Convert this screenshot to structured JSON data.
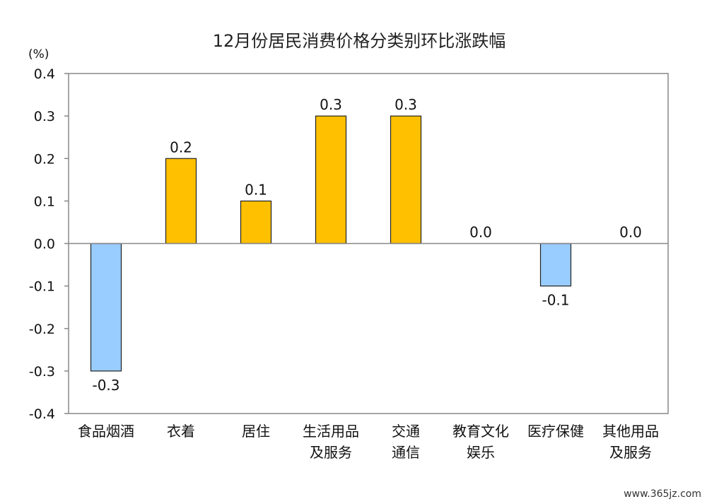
{
  "chart_data": {
    "type": "bar",
    "title": "12月份居民消费价格分类别环比涨跌幅",
    "unit_label": "(%)",
    "categories": [
      [
        "食品烟酒"
      ],
      [
        "衣着"
      ],
      [
        "居住"
      ],
      [
        "生活用品",
        "及服务"
      ],
      [
        "交通",
        "通信"
      ],
      [
        "教育文化",
        "娱乐"
      ],
      [
        "医疗保健"
      ],
      [
        "其他用品",
        "及服务"
      ]
    ],
    "values": [
      -0.3,
      0.2,
      0.1,
      0.3,
      0.3,
      0.0,
      -0.1,
      0.0
    ],
    "data_labels": [
      "-0.3",
      "0.2",
      "0.1",
      "0.3",
      "0.3",
      "0.0",
      "-0.1",
      "0.0"
    ],
    "yticks": [
      "0.4",
      "0.3",
      "0.2",
      "0.1",
      "0.0",
      "-0.1",
      "-0.2",
      "-0.3",
      "-0.4"
    ],
    "ylim": [
      -0.4,
      0.4
    ],
    "grid": false,
    "colors": {
      "positive": "#FFC000",
      "negative": "#99CCFF",
      "border": "#222222",
      "axis": "#888888"
    }
  },
  "watermark": "www.365jz.com"
}
